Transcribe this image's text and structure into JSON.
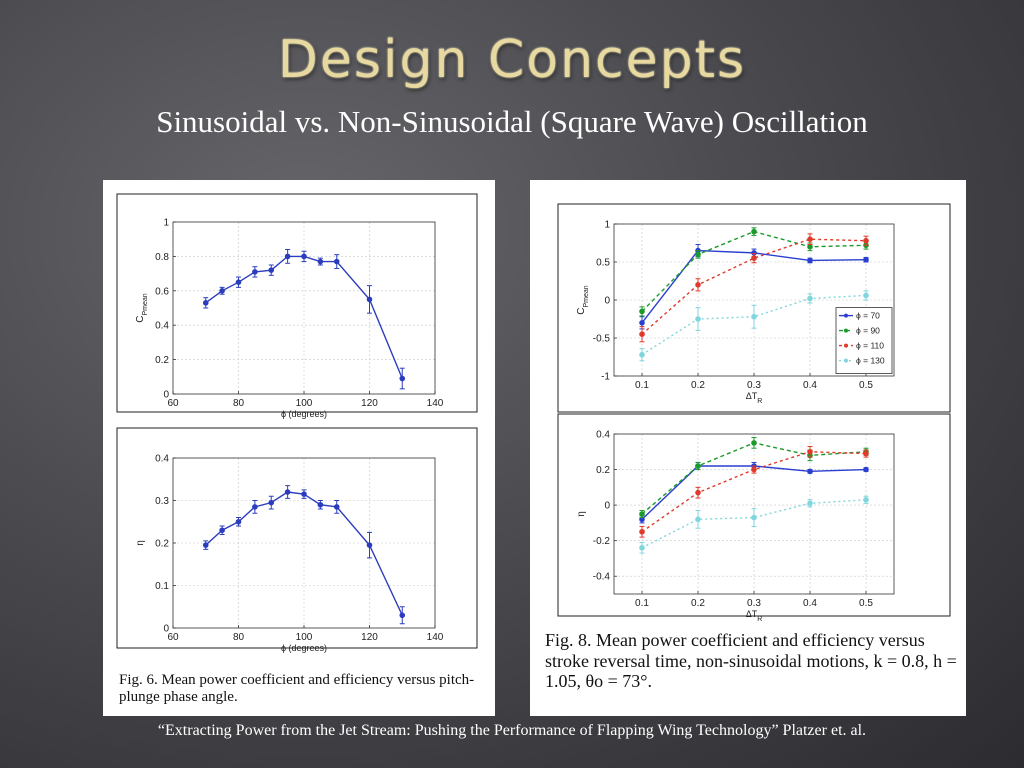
{
  "slide": {
    "title": "Design Concepts",
    "subtitle": "Sinusoidal vs. Non-Sinusoidal (Square Wave) Oscillation",
    "citation": "“Extracting Power from the Jet Stream: Pushing the Performance of Flapping Wing Technology” Platzer et. al."
  },
  "figures": {
    "fig6": {
      "caption": "Fig. 6. Mean power coefficient and efficiency versus pitch-plunge phase angle."
    },
    "fig8": {
      "caption": "Fig. 8. Mean power coefficient and efficiency versus stroke reversal time, non-sinusoidal motions, k = 0.8, h = 1.05, θo = 73°."
    }
  },
  "chart_data": [
    {
      "type": "line",
      "panel": "fig6-top",
      "xlabel": "ϕ (degrees)",
      "ylabel": "C_Pmean",
      "xlim": [
        60,
        140
      ],
      "ylim": [
        0,
        1
      ],
      "xticks": [
        60,
        80,
        100,
        120,
        140
      ],
      "yticks": [
        0,
        0.2,
        0.4,
        0.6,
        0.8,
        1
      ],
      "grid": true,
      "color": "#2b3dbd",
      "x": [
        70,
        75,
        80,
        85,
        90,
        95,
        100,
        105,
        110,
        120,
        130
      ],
      "values": [
        0.53,
        0.6,
        0.65,
        0.71,
        0.72,
        0.8,
        0.8,
        0.77,
        0.77,
        0.55,
        0.09
      ],
      "errors": [
        0.03,
        0.02,
        0.03,
        0.03,
        0.03,
        0.04,
        0.03,
        0.02,
        0.04,
        0.08,
        0.06
      ]
    },
    {
      "type": "line",
      "panel": "fig6-bottom",
      "xlabel": "ϕ (degrees)",
      "ylabel": "η",
      "xlim": [
        60,
        140
      ],
      "ylim": [
        0,
        0.4
      ],
      "xticks": [
        60,
        80,
        100,
        120,
        140
      ],
      "yticks": [
        0,
        0.1,
        0.2,
        0.3,
        0.4
      ],
      "grid": true,
      "color": "#2b3dbd",
      "x": [
        70,
        75,
        80,
        85,
        90,
        95,
        100,
        105,
        110,
        120,
        130
      ],
      "values": [
        0.195,
        0.23,
        0.25,
        0.285,
        0.295,
        0.32,
        0.315,
        0.29,
        0.285,
        0.195,
        0.03
      ],
      "errors": [
        0.01,
        0.01,
        0.01,
        0.015,
        0.015,
        0.015,
        0.01,
        0.01,
        0.015,
        0.03,
        0.02
      ]
    },
    {
      "type": "line",
      "panel": "fig8-top",
      "xlabel": "ΔT_R",
      "ylabel": "C_Pmean",
      "xlim": [
        0.05,
        0.55
      ],
      "ylim": [
        -1,
        1
      ],
      "xticks": [
        0.1,
        0.2,
        0.3,
        0.4,
        0.5
      ],
      "yticks": [
        -1,
        -0.5,
        0,
        0.5,
        1
      ],
      "grid": true,
      "legend": "right",
      "categories": [
        0.1,
        0.2,
        0.3,
        0.4,
        0.5
      ],
      "series": [
        {
          "name": "ϕ = 70",
          "color": "#2a3fd0",
          "dash": "",
          "values": [
            -0.3,
            0.65,
            0.62,
            0.52,
            0.53
          ],
          "errors": [
            0.08,
            0.08,
            0.05,
            0.03,
            0.03
          ]
        },
        {
          "name": "ϕ = 90",
          "color": "#1a9a2a",
          "dash": "4,3",
          "values": [
            -0.15,
            0.6,
            0.9,
            0.7,
            0.72
          ],
          "errors": [
            0.06,
            0.05,
            0.05,
            0.05,
            0.05
          ]
        },
        {
          "name": "ϕ = 110",
          "color": "#e03a2a",
          "dash": "3,3",
          "values": [
            -0.45,
            0.2,
            0.55,
            0.8,
            0.78
          ],
          "errors": [
            0.1,
            0.08,
            0.06,
            0.07,
            0.06
          ]
        },
        {
          "name": "ϕ = 130",
          "color": "#7fd6dc",
          "dash": "2,3",
          "values": [
            -0.72,
            -0.25,
            -0.22,
            0.02,
            0.06
          ],
          "errors": [
            0.08,
            0.15,
            0.15,
            0.06,
            0.06
          ]
        }
      ]
    },
    {
      "type": "line",
      "panel": "fig8-bottom",
      "xlabel": "ΔT_R",
      "ylabel": "η",
      "xlim": [
        0.05,
        0.55
      ],
      "ylim": [
        -0.5,
        0.4
      ],
      "xticks": [
        0.1,
        0.2,
        0.3,
        0.4,
        0.5
      ],
      "yticks": [
        -0.4,
        -0.2,
        0,
        0.2,
        0.4
      ],
      "grid": true,
      "categories": [
        0.1,
        0.2,
        0.3,
        0.4,
        0.5
      ],
      "series": [
        {
          "name": "ϕ = 70",
          "color": "#2a3fd0",
          "dash": "",
          "values": [
            -0.08,
            0.22,
            0.22,
            0.19,
            0.2
          ],
          "errors": [
            0.02,
            0.02,
            0.02,
            0.01,
            0.01
          ]
        },
        {
          "name": "ϕ = 90",
          "color": "#1a9a2a",
          "dash": "4,3",
          "values": [
            -0.05,
            0.22,
            0.35,
            0.28,
            0.3
          ],
          "errors": [
            0.02,
            0.02,
            0.03,
            0.03,
            0.02
          ]
        },
        {
          "name": "ϕ = 110",
          "color": "#e03a2a",
          "dash": "3,3",
          "values": [
            -0.15,
            0.07,
            0.2,
            0.3,
            0.29
          ],
          "errors": [
            0.03,
            0.03,
            0.02,
            0.03,
            0.02
          ]
        },
        {
          "name": "ϕ = 130",
          "color": "#7fd6dc",
          "dash": "2,3",
          "values": [
            -0.24,
            -0.08,
            -0.07,
            0.01,
            0.03
          ],
          "errors": [
            0.03,
            0.05,
            0.05,
            0.02,
            0.02
          ]
        }
      ]
    }
  ]
}
